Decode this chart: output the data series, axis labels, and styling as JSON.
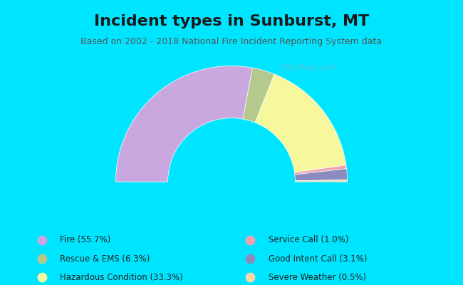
{
  "title": "Incident types in Sunburst, MT",
  "subtitle": "Based on 2002 - 2018 National Fire Incident Reporting System data",
  "background_outer": "#00e5ff",
  "background_chart": "#dff0d8",
  "segments": [
    {
      "label": "Fire (55.7%)",
      "value": 55.7,
      "color": "#c9a8e0"
    },
    {
      "label": "Rescue & EMS (6.3%)",
      "value": 6.3,
      "color": "#b5c98e"
    },
    {
      "label": "Hazardous Condition (33.3%)",
      "value": 33.3,
      "color": "#f7f79e"
    },
    {
      "label": "Service Call (1.0%)",
      "value": 1.0,
      "color": "#f4a0b0"
    },
    {
      "label": "Good Intent Call (3.1%)",
      "value": 3.1,
      "color": "#8b8bbf"
    },
    {
      "label": "Severe Weather (0.5%)",
      "value": 0.5,
      "color": "#f9d8a8"
    }
  ],
  "legend_order": [
    {
      "label": "Fire (55.7%)",
      "color": "#c9a8e0"
    },
    {
      "label": "Rescue & EMS (6.3%)",
      "color": "#b5c98e"
    },
    {
      "label": "Hazardous Condition (33.3%)",
      "color": "#f7f79e"
    },
    {
      "label": "Service Call (1.0%)",
      "color": "#f4a0b0"
    },
    {
      "label": "Good Intent Call (3.1%)",
      "color": "#8b8bbf"
    },
    {
      "label": "Severe Weather (0.5%)",
      "color": "#f9d8a8"
    }
  ],
  "title_fontsize": 16,
  "subtitle_fontsize": 9,
  "watermark": "City-Data.com"
}
